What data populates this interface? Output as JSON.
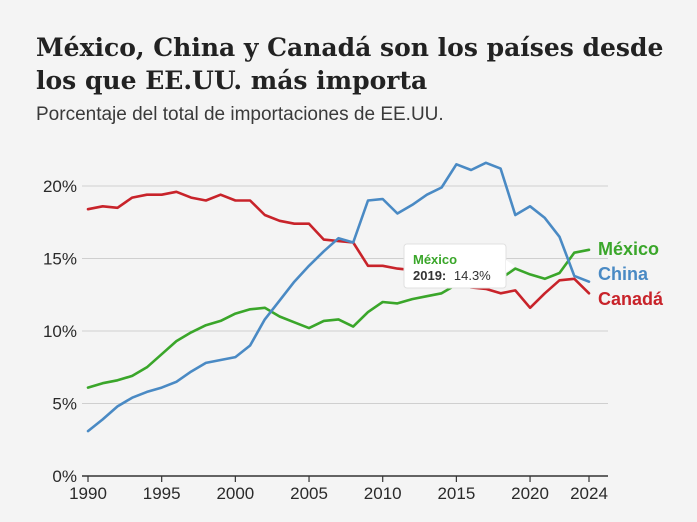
{
  "header": {
    "title": "México, China y Canadá son los países desde los que EE.UU. más importa",
    "subtitle": "Porcentaje del total de importaciones de EE.UU."
  },
  "tooltip": {
    "series": "México",
    "year_label": "2019:",
    "value_label": "14.3%"
  },
  "colors": {
    "mexico": "#3aa62a",
    "china": "#4a8ac4",
    "canada": "#c8232a",
    "gridline": "#cfcfcf",
    "axis": "#333333"
  },
  "chart_data": {
    "type": "line",
    "x": [
      1990,
      1991,
      1992,
      1993,
      1994,
      1995,
      1996,
      1997,
      1998,
      1999,
      2000,
      2001,
      2002,
      2003,
      2004,
      2005,
      2006,
      2007,
      2008,
      2009,
      2010,
      2011,
      2012,
      2013,
      2014,
      2015,
      2016,
      2017,
      2018,
      2019,
      2020,
      2021,
      2022,
      2023,
      2024
    ],
    "xticks": [
      1990,
      1995,
      2000,
      2005,
      2010,
      2015,
      2020,
      2024
    ],
    "xlim": [
      1990,
      2024
    ],
    "ylim": [
      0,
      22
    ],
    "yticks": [
      0,
      5,
      10,
      15,
      20
    ],
    "ytick_labels": [
      "0%",
      "5%",
      "10%",
      "15%",
      "20%"
    ],
    "grid": true,
    "series": [
      {
        "name": "México",
        "key": "mexico",
        "values": [
          6.1,
          6.4,
          6.6,
          6.9,
          7.5,
          8.4,
          9.3,
          9.9,
          10.4,
          10.7,
          11.2,
          11.5,
          11.6,
          11.0,
          10.6,
          10.2,
          10.7,
          10.8,
          10.3,
          11.3,
          12.0,
          11.9,
          12.2,
          12.4,
          12.6,
          13.2,
          13.4,
          13.4,
          13.6,
          14.3,
          13.9,
          13.6,
          14.0,
          15.4,
          15.6
        ]
      },
      {
        "name": "China",
        "key": "china",
        "values": [
          3.1,
          3.9,
          4.8,
          5.4,
          5.8,
          6.1,
          6.5,
          7.2,
          7.8,
          8.0,
          8.2,
          9.0,
          10.8,
          12.1,
          13.4,
          14.5,
          15.5,
          16.4,
          16.1,
          19.0,
          19.1,
          18.1,
          18.7,
          19.4,
          19.9,
          21.5,
          21.1,
          21.6,
          21.2,
          18.0,
          18.6,
          17.8,
          16.5,
          13.8,
          13.4
        ]
      },
      {
        "name": "Canadá",
        "key": "canada",
        "values": [
          18.4,
          18.6,
          18.5,
          19.2,
          19.4,
          19.4,
          19.6,
          19.2,
          19.0,
          19.4,
          19.0,
          19.0,
          18.0,
          17.6,
          17.4,
          17.4,
          16.3,
          16.2,
          16.1,
          14.5,
          14.5,
          14.3,
          14.2,
          14.1,
          14.0,
          13.3,
          13.0,
          12.9,
          12.6,
          12.8,
          11.6,
          12.6,
          13.5,
          13.6,
          12.6
        ]
      }
    ]
  }
}
